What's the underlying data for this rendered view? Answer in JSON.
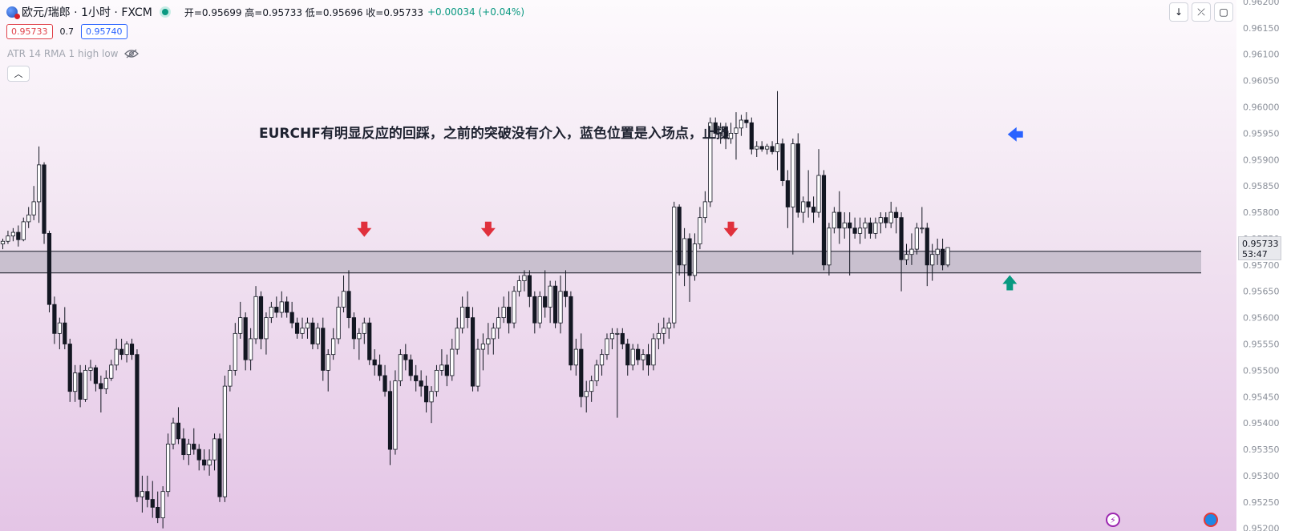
{
  "header": {
    "title": "欧元/瑞郎 · 1小时 · FXCM",
    "ohlc_text": "开=0.95699 高=0.95733 低=0.95696 收=0.95733",
    "change_text": "+0.00034 (+0.04%)"
  },
  "quote": {
    "bid": "0.95733",
    "spread": "0.7",
    "ask": "0.95740"
  },
  "indicator_label": "ATR 14 RMA 1 high low",
  "annotation": "EURCHF有明显反应的回踩，之前的突破没有介入，蓝色位置是入场点，止损",
  "price_tag": {
    "price": "0.95733",
    "countdown": "53:47"
  },
  "tool_icons": [
    "arrow-down-icon",
    "fullscreen-icon",
    "maximize-icon"
  ],
  "chart_data": {
    "type": "candlestick",
    "symbol": "EURCHF",
    "interval": "1小时",
    "ylim": [
      0.95195,
      0.96203
    ],
    "y_ticks": [
      "0.96200",
      "0.96150",
      "0.96100",
      "0.96050",
      "0.96000",
      "0.95950",
      "0.95900",
      "0.95850",
      "0.95800",
      "0.95750",
      "0.95700",
      "0.95650",
      "0.95600",
      "0.95550",
      "0.95500",
      "0.95450",
      "0.95400",
      "0.95350",
      "0.95300",
      "0.95250",
      "0.95200"
    ],
    "zone": {
      "top": 0.95726,
      "bottom": 0.95685
    },
    "last_price": 0.95733,
    "colors": {
      "up_body": "#ffffff",
      "down_body": "#131722",
      "wick": "#131722",
      "zone_fill": "#c9c0cf",
      "down_arrow": "#e0303c",
      "entry_arrow": "#2962ff",
      "up_arrow": "#089981"
    },
    "ohlc": [
      [
        0.9574,
        0.9575,
        0.9573,
        0.95745
      ],
      [
        0.95745,
        0.95765,
        0.9574,
        0.95755
      ],
      [
        0.95755,
        0.9577,
        0.95745,
        0.95762
      ],
      [
        0.95762,
        0.95775,
        0.95735,
        0.95748
      ],
      [
        0.95748,
        0.9579,
        0.95745,
        0.95782
      ],
      [
        0.95782,
        0.9581,
        0.9577,
        0.95795
      ],
      [
        0.95795,
        0.9585,
        0.95785,
        0.9582
      ],
      [
        0.9582,
        0.95925,
        0.9578,
        0.9589
      ],
      [
        0.9589,
        0.95895,
        0.9574,
        0.9576
      ],
      [
        0.9576,
        0.95765,
        0.9561,
        0.95625
      ],
      [
        0.95625,
        0.9564,
        0.9555,
        0.9557
      ],
      [
        0.9557,
        0.956,
        0.9554,
        0.9559
      ],
      [
        0.9559,
        0.9562,
        0.9554,
        0.9555
      ],
      [
        0.9555,
        0.9556,
        0.9544,
        0.9546
      ],
      [
        0.9546,
        0.9551,
        0.9544,
        0.95495
      ],
      [
        0.95495,
        0.9551,
        0.9543,
        0.95445
      ],
      [
        0.95445,
        0.9551,
        0.9544,
        0.955
      ],
      [
        0.955,
        0.9552,
        0.9548,
        0.95505
      ],
      [
        0.95505,
        0.9551,
        0.9546,
        0.95475
      ],
      [
        0.95475,
        0.9549,
        0.9542,
        0.95465
      ],
      [
        0.95465,
        0.955,
        0.95455,
        0.95485
      ],
      [
        0.95485,
        0.9552,
        0.9548,
        0.9551
      ],
      [
        0.9551,
        0.9556,
        0.955,
        0.9554
      ],
      [
        0.9554,
        0.9556,
        0.9552,
        0.9553
      ],
      [
        0.9553,
        0.95555,
        0.95515,
        0.9555
      ],
      [
        0.9555,
        0.9556,
        0.9552,
        0.9553
      ],
      [
        0.9553,
        0.9554,
        0.9525,
        0.9526
      ],
      [
        0.9526,
        0.953,
        0.9523,
        0.9527
      ],
      [
        0.9527,
        0.953,
        0.9524,
        0.95255
      ],
      [
        0.95255,
        0.9529,
        0.9522,
        0.9524
      ],
      [
        0.9524,
        0.9527,
        0.9521,
        0.9522
      ],
      [
        0.9522,
        0.9528,
        0.952,
        0.9527
      ],
      [
        0.9527,
        0.9538,
        0.9526,
        0.9536
      ],
      [
        0.9536,
        0.9541,
        0.9535,
        0.954
      ],
      [
        0.954,
        0.9543,
        0.9536,
        0.9537
      ],
      [
        0.9537,
        0.9539,
        0.9533,
        0.9534
      ],
      [
        0.9534,
        0.9537,
        0.9532,
        0.9536
      ],
      [
        0.9536,
        0.9539,
        0.9534,
        0.9535
      ],
      [
        0.9535,
        0.9536,
        0.9531,
        0.9533
      ],
      [
        0.9533,
        0.9535,
        0.9531,
        0.9532
      ],
      [
        0.9532,
        0.9535,
        0.953,
        0.9533
      ],
      [
        0.9533,
        0.9538,
        0.9531,
        0.9537
      ],
      [
        0.9537,
        0.9538,
        0.9525,
        0.9526
      ],
      [
        0.9526,
        0.9549,
        0.9525,
        0.9547
      ],
      [
        0.9547,
        0.9551,
        0.9546,
        0.955
      ],
      [
        0.955,
        0.9559,
        0.9549,
        0.9557
      ],
      [
        0.9557,
        0.9563,
        0.9556,
        0.956
      ],
      [
        0.956,
        0.9561,
        0.955,
        0.9552
      ],
      [
        0.9552,
        0.9558,
        0.955,
        0.9556
      ],
      [
        0.9556,
        0.9566,
        0.9555,
        0.9564
      ],
      [
        0.9564,
        0.9565,
        0.9554,
        0.9556
      ],
      [
        0.9556,
        0.9561,
        0.9553,
        0.956
      ],
      [
        0.956,
        0.9563,
        0.9559,
        0.9562
      ],
      [
        0.9562,
        0.9564,
        0.956,
        0.9561
      ],
      [
        0.9561,
        0.9565,
        0.956,
        0.9563
      ],
      [
        0.9563,
        0.9564,
        0.956,
        0.9561
      ],
      [
        0.9561,
        0.9563,
        0.9558,
        0.9559
      ],
      [
        0.9559,
        0.956,
        0.9556,
        0.9557
      ],
      [
        0.9557,
        0.956,
        0.9556,
        0.9558
      ],
      [
        0.9558,
        0.956,
        0.9556,
        0.9559
      ],
      [
        0.9559,
        0.956,
        0.9554,
        0.9555
      ],
      [
        0.9555,
        0.9559,
        0.9554,
        0.9558
      ],
      [
        0.9558,
        0.956,
        0.9548,
        0.955
      ],
      [
        0.955,
        0.9554,
        0.9546,
        0.9553
      ],
      [
        0.9553,
        0.9558,
        0.9552,
        0.9556
      ],
      [
        0.9556,
        0.9564,
        0.9555,
        0.9562
      ],
      [
        0.9562,
        0.9568,
        0.9561,
        0.9565
      ],
      [
        0.9565,
        0.9569,
        0.9558,
        0.956
      ],
      [
        0.956,
        0.9561,
        0.9554,
        0.9556
      ],
      [
        0.9556,
        0.9558,
        0.9552,
        0.9557
      ],
      [
        0.9557,
        0.956,
        0.9555,
        0.9559
      ],
      [
        0.9559,
        0.956,
        0.9551,
        0.9552
      ],
      [
        0.9552,
        0.9554,
        0.9549,
        0.9551
      ],
      [
        0.9551,
        0.9553,
        0.9548,
        0.9549
      ],
      [
        0.9549,
        0.9551,
        0.9545,
        0.9546
      ],
      [
        0.9546,
        0.9548,
        0.9532,
        0.9535
      ],
      [
        0.9535,
        0.955,
        0.9534,
        0.9548
      ],
      [
        0.9548,
        0.9554,
        0.9547,
        0.9553
      ],
      [
        0.9553,
        0.9555,
        0.955,
        0.9552
      ],
      [
        0.9552,
        0.9553,
        0.9548,
        0.9549
      ],
      [
        0.9549,
        0.9551,
        0.9546,
        0.9548
      ],
      [
        0.9548,
        0.955,
        0.9545,
        0.9547
      ],
      [
        0.9547,
        0.9549,
        0.9542,
        0.9544
      ],
      [
        0.9544,
        0.9547,
        0.954,
        0.9546
      ],
      [
        0.9546,
        0.9551,
        0.9545,
        0.955
      ],
      [
        0.955,
        0.9554,
        0.9549,
        0.9551
      ],
      [
        0.9551,
        0.9553,
        0.9547,
        0.9549
      ],
      [
        0.9549,
        0.9556,
        0.9548,
        0.9554
      ],
      [
        0.9554,
        0.956,
        0.9553,
        0.9558
      ],
      [
        0.9558,
        0.9564,
        0.9557,
        0.9562
      ],
      [
        0.9562,
        0.9565,
        0.9558,
        0.956
      ],
      [
        0.956,
        0.9562,
        0.9546,
        0.9547
      ],
      [
        0.9547,
        0.9556,
        0.9546,
        0.9554
      ],
      [
        0.9554,
        0.9557,
        0.955,
        0.9555
      ],
      [
        0.9555,
        0.9559,
        0.9553,
        0.9556
      ],
      [
        0.9556,
        0.9559,
        0.9553,
        0.9558
      ],
      [
        0.9558,
        0.9562,
        0.9556,
        0.956
      ],
      [
        0.956,
        0.9564,
        0.9559,
        0.9562
      ],
      [
        0.9562,
        0.9565,
        0.9557,
        0.9559
      ],
      [
        0.9559,
        0.9566,
        0.9558,
        0.9565
      ],
      [
        0.9565,
        0.9568,
        0.9564,
        0.9567
      ],
      [
        0.9567,
        0.9569,
        0.9565,
        0.9568
      ],
      [
        0.9568,
        0.9569,
        0.9562,
        0.9564
      ],
      [
        0.9564,
        0.9565,
        0.9557,
        0.9559
      ],
      [
        0.9559,
        0.9565,
        0.9558,
        0.9564
      ],
      [
        0.9564,
        0.9569,
        0.956,
        0.9562
      ],
      [
        0.9562,
        0.9567,
        0.9559,
        0.9566
      ],
      [
        0.9566,
        0.9567,
        0.9558,
        0.9559
      ],
      [
        0.9559,
        0.9568,
        0.9557,
        0.9565
      ],
      [
        0.9565,
        0.9569,
        0.9562,
        0.9564
      ],
      [
        0.9564,
        0.9565,
        0.955,
        0.9551
      ],
      [
        0.9551,
        0.9556,
        0.9549,
        0.9554
      ],
      [
        0.9554,
        0.9557,
        0.9543,
        0.9545
      ],
      [
        0.9545,
        0.9548,
        0.9542,
        0.9546
      ],
      [
        0.9546,
        0.9549,
        0.9544,
        0.9548
      ],
      [
        0.9548,
        0.9552,
        0.9547,
        0.9551
      ],
      [
        0.9551,
        0.9554,
        0.9549,
        0.9553
      ],
      [
        0.9553,
        0.9557,
        0.9552,
        0.9556
      ],
      [
        0.9556,
        0.9558,
        0.9554,
        0.9557
      ],
      [
        0.9557,
        0.9558,
        0.9541,
        0.9557
      ],
      [
        0.9557,
        0.9558,
        0.9554,
        0.9555
      ],
      [
        0.9555,
        0.9556,
        0.9549,
        0.9551
      ],
      [
        0.9551,
        0.9555,
        0.955,
        0.9554
      ],
      [
        0.9554,
        0.9555,
        0.9551,
        0.9552
      ],
      [
        0.9552,
        0.9554,
        0.955,
        0.9553
      ],
      [
        0.9553,
        0.9555,
        0.9549,
        0.9551
      ],
      [
        0.9551,
        0.9557,
        0.955,
        0.9556
      ],
      [
        0.9556,
        0.9559,
        0.9554,
        0.9557
      ],
      [
        0.9557,
        0.956,
        0.9555,
        0.9558
      ],
      [
        0.9558,
        0.956,
        0.9556,
        0.9559
      ],
      [
        0.9559,
        0.9582,
        0.9558,
        0.9581
      ],
      [
        0.9581,
        0.95815,
        0.9568,
        0.957
      ],
      [
        0.957,
        0.9577,
        0.9566,
        0.9575
      ],
      [
        0.9575,
        0.9576,
        0.9563,
        0.9568
      ],
      [
        0.9568,
        0.9576,
        0.9567,
        0.9574
      ],
      [
        0.9574,
        0.9581,
        0.9573,
        0.9579
      ],
      [
        0.9579,
        0.9584,
        0.9578,
        0.9582
      ],
      [
        0.9582,
        0.9598,
        0.9581,
        0.9597
      ],
      [
        0.9597,
        0.9598,
        0.9594,
        0.9595
      ],
      [
        0.9595,
        0.9597,
        0.9593,
        0.9596
      ],
      [
        0.9596,
        0.9597,
        0.9592,
        0.9594
      ],
      [
        0.9594,
        0.9597,
        0.9593,
        0.9595
      ],
      [
        0.9595,
        0.9599,
        0.959,
        0.9596
      ],
      [
        0.9596,
        0.95985,
        0.95945,
        0.95975
      ],
      [
        0.95975,
        0.9599,
        0.9596,
        0.9597
      ],
      [
        0.9597,
        0.9598,
        0.9591,
        0.9592
      ],
      [
        0.9592,
        0.95935,
        0.95905,
        0.95925
      ],
      [
        0.95925,
        0.95935,
        0.95915,
        0.9592
      ],
      [
        0.9592,
        0.9593,
        0.9591,
        0.95925
      ],
      [
        0.95925,
        0.95935,
        0.9591,
        0.95915
      ],
      [
        0.95915,
        0.9603,
        0.9588,
        0.9593
      ],
      [
        0.9593,
        0.9594,
        0.9585,
        0.9586
      ],
      [
        0.9586,
        0.9588,
        0.9577,
        0.9581
      ],
      [
        0.9581,
        0.9594,
        0.9572,
        0.9593
      ],
      [
        0.9593,
        0.9595,
        0.9579,
        0.958
      ],
      [
        0.958,
        0.9583,
        0.9578,
        0.9582
      ],
      [
        0.9582,
        0.9588,
        0.9579,
        0.9581
      ],
      [
        0.9581,
        0.9583,
        0.9578,
        0.958
      ],
      [
        0.958,
        0.9592,
        0.9579,
        0.9587
      ],
      [
        0.9587,
        0.9588,
        0.9569,
        0.957
      ],
      [
        0.957,
        0.9578,
        0.9568,
        0.9577
      ],
      [
        0.9577,
        0.9581,
        0.9576,
        0.958
      ],
      [
        0.958,
        0.9584,
        0.9574,
        0.9577
      ],
      [
        0.9577,
        0.958,
        0.9575,
        0.9578
      ],
      [
        0.9578,
        0.958,
        0.9568,
        0.9577
      ],
      [
        0.9577,
        0.9579,
        0.9575,
        0.9576
      ],
      [
        0.9576,
        0.9579,
        0.9574,
        0.9577
      ],
      [
        0.9577,
        0.9579,
        0.9575,
        0.9578
      ],
      [
        0.9578,
        0.9579,
        0.9575,
        0.9576
      ],
      [
        0.9576,
        0.9579,
        0.9575,
        0.9578
      ],
      [
        0.9578,
        0.958,
        0.9576,
        0.9579
      ],
      [
        0.9579,
        0.958,
        0.9577,
        0.9578
      ],
      [
        0.9578,
        0.9582,
        0.9577,
        0.958
      ],
      [
        0.958,
        0.9581,
        0.9576,
        0.9579
      ],
      [
        0.9579,
        0.958,
        0.9565,
        0.9571
      ],
      [
        0.9571,
        0.9574,
        0.957,
        0.9572
      ],
      [
        0.9572,
        0.9576,
        0.957,
        0.9573
      ],
      [
        0.9573,
        0.9578,
        0.9572,
        0.9577
      ],
      [
        0.9577,
        0.9581,
        0.9576,
        0.9577
      ],
      [
        0.9577,
        0.9578,
        0.9566,
        0.957
      ],
      [
        0.957,
        0.9574,
        0.9567,
        0.9572
      ],
      [
        0.9572,
        0.9575,
        0.957,
        0.9573
      ],
      [
        0.9573,
        0.9575,
        0.9569,
        0.957
      ],
      [
        0.957,
        0.95733,
        0.95696,
        0.95733
      ]
    ],
    "markers": [
      {
        "type": "arrow-down",
        "bar": 70,
        "price": 0.95767
      },
      {
        "type": "arrow-down",
        "bar": 94,
        "price": 0.95767
      },
      {
        "type": "arrow-down",
        "bar": 141,
        "price": 0.95767
      },
      {
        "type": "arrow-left",
        "bar": 196,
        "price": 0.95948
      },
      {
        "type": "arrow-up",
        "bar": 195,
        "price": 0.95667
      }
    ]
  }
}
